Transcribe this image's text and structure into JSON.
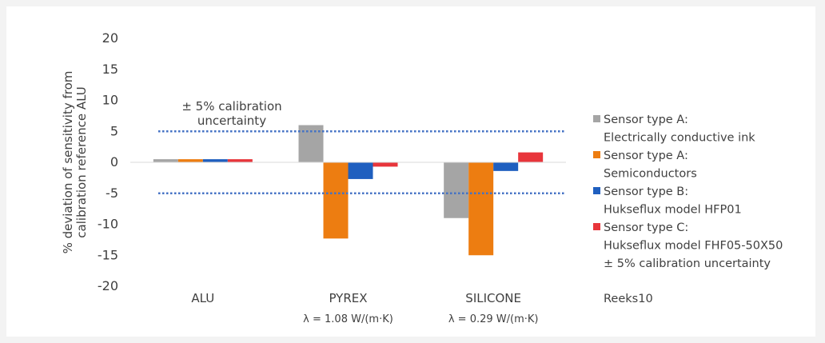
{
  "chart_data": {
    "type": "bar",
    "ylabel": [
      "% deviation of sensitivity from",
      "calibration reference ALU"
    ],
    "ylim": [
      -20,
      20
    ],
    "yticks": [
      20,
      15,
      10,
      5,
      0,
      -5,
      -10,
      -15,
      -20
    ],
    "categories": [
      "ALU",
      "PYREX",
      "SILICONE"
    ],
    "category_sublabels": [
      "",
      "λ = 1.08 W/(m·K)",
      "λ = 0.29 W/(m·K)"
    ],
    "series": [
      {
        "name": [
          "Sensor type A:",
          "Electrically conductive ink"
        ],
        "color": "#a5a5a5",
        "values": [
          0.5,
          6.0,
          -9.0
        ]
      },
      {
        "name": [
          "Sensor type A:",
          "Semiconductors"
        ],
        "color": "#ed7d11",
        "values": [
          0.5,
          -12.3,
          -15.0
        ]
      },
      {
        "name": [
          "Sensor type B:",
          "Hukseflux model HFP01"
        ],
        "color": "#1f5fbf",
        "values": [
          0.5,
          -2.7,
          -1.4
        ]
      },
      {
        "name": [
          "Sensor type C:",
          "Hukseflux model FHF05-50X50"
        ],
        "color": "#e8353b",
        "values": [
          0.5,
          -0.7,
          1.6
        ]
      }
    ],
    "reference_lines": {
      "name": "± 5% calibration uncertainty",
      "values": [
        5,
        -5
      ],
      "color": "#4472c4",
      "style": "dotted",
      "annotation": [
        "± 5% calibration",
        "uncertainty"
      ]
    },
    "extra_legend_entry": "Reeks10",
    "legend_position": "right",
    "grid": false
  }
}
